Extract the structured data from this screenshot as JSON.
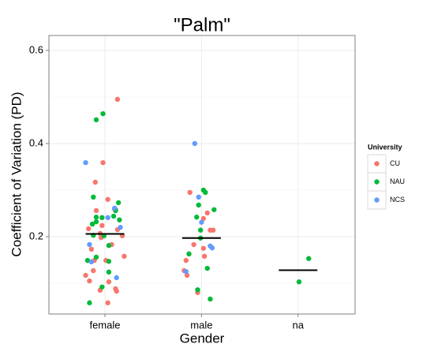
{
  "chart_data": {
    "type": "scatter",
    "title": "\"Palm\"",
    "x_label": "Gender",
    "y_label": "Coefficient of Variation (PD)",
    "xlim": [
      0.42,
      3.59
    ],
    "xticks": [
      {
        "value": 1,
        "label": "female"
      },
      {
        "value": 2,
        "label": "male"
      },
      {
        "value": 3,
        "label": "na"
      }
    ],
    "ylim": [
      0.034,
      0.632
    ],
    "yticks": [
      0.2,
      0.4,
      0.6
    ],
    "grid": true,
    "legend": {
      "title": "University",
      "position": "right"
    },
    "means": {
      "x": [
        1,
        2,
        3
      ],
      "values": [
        0.206,
        0.197,
        0.128
      ],
      "color": "#000000"
    },
    "series": [
      {
        "name": "CU",
        "color": "#f8766d",
        "x": [
          1.13,
          0.98,
          0.9,
          1.03,
          0.91,
          1.1,
          0.83,
          0.95,
          1.13,
          0.97,
          1.18,
          0.96,
          1.07,
          0.86,
          1.2,
          0.89,
          1.01,
          0.8,
          0.88,
          0.84,
          1.04,
          0.95,
          1.11,
          1.12,
          1.03,
          1.88,
          2.06,
          2.02,
          2.09,
          2.12,
          1.92,
          2.02,
          1.87,
          2.03,
          1.84,
          1.82,
          1.85,
          1.96
        ],
        "values": [
          0.495,
          0.359,
          0.317,
          0.28,
          0.256,
          0.259,
          0.217,
          0.207,
          0.215,
          0.224,
          0.202,
          0.198,
          0.183,
          0.173,
          0.158,
          0.149,
          0.149,
          0.117,
          0.127,
          0.105,
          0.103,
          0.085,
          0.088,
          0.083,
          0.058,
          0.295,
          0.251,
          0.239,
          0.214,
          0.214,
          0.183,
          0.175,
          0.163,
          0.158,
          0.149,
          0.127,
          0.117,
          0.08
        ]
      },
      {
        "name": "NAU",
        "color": "#00ba38",
        "x": [
          0.98,
          0.91,
          0.88,
          1.14,
          0.91,
          0.91,
          1.11,
          1.09,
          1.11,
          0.97,
          1.15,
          0.87,
          0.99,
          0.88,
          1.04,
          0.91,
          0.82,
          1.04,
          1.04,
          0.97,
          0.84,
          2.02,
          1.97,
          1.95,
          2.13,
          2.04,
          1.99,
          1.99,
          1.87,
          2.06,
          1.96,
          2.09,
          3.11,
          3.01
        ],
        "values": [
          0.464,
          0.451,
          0.285,
          0.273,
          0.242,
          0.232,
          0.256,
          0.244,
          0.258,
          0.241,
          0.236,
          0.227,
          0.202,
          0.203,
          0.181,
          0.156,
          0.149,
          0.147,
          0.124,
          0.092,
          0.058,
          0.3,
          0.268,
          0.242,
          0.258,
          0.295,
          0.214,
          0.197,
          0.163,
          0.132,
          0.086,
          0.066,
          0.153,
          0.103
        ]
      },
      {
        "name": "NCS",
        "color": "#619cff",
        "x": [
          0.8,
          1.1,
          1.03,
          1.16,
          0.84,
          1.12,
          0.86,
          1.93,
          1.97,
          2.0,
          2.11,
          2.09,
          1.84
        ],
        "values": [
          0.359,
          0.261,
          0.241,
          0.22,
          0.183,
          0.112,
          0.146,
          0.4,
          0.285,
          0.231,
          0.176,
          0.18,
          0.125
        ]
      }
    ]
  }
}
